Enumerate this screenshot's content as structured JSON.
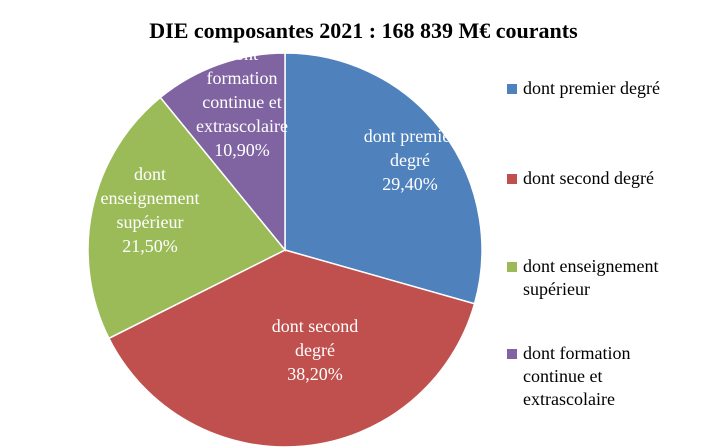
{
  "chart_data": {
    "type": "pie",
    "title": "DIE composantes 2021 : 168  839 M€ courants",
    "legend_position": "right",
    "slices": [
      {
        "name": "dont premier degré",
        "value": 29.4,
        "label_lines": [
          "dont premier",
          "degré",
          "29,40%"
        ],
        "color": "#4F81BD"
      },
      {
        "name": "dont second degré",
        "value": 38.2,
        "label_lines": [
          "dont second",
          "degré",
          "38,20%"
        ],
        "color": "#C0504D"
      },
      {
        "name": "dont enseignement supérieur",
        "value": 21.5,
        "label_lines": [
          "dont",
          "enseignement",
          "supérieur",
          "21,50%"
        ],
        "color": "#9BBB59"
      },
      {
        "name": "dont formation continue et extrascolaire",
        "value": 10.9,
        "label_lines": [
          "dont",
          "formation",
          "continue et",
          "extrascolaire",
          "10,90%"
        ],
        "color": "#8064A2"
      }
    ],
    "legend": [
      {
        "lines": [
          "dont premier degré"
        ]
      },
      {
        "lines": [
          "dont second degré"
        ]
      },
      {
        "lines": [
          "dont enseignement",
          "supérieur"
        ]
      },
      {
        "lines": [
          "dont formation",
          "continue et",
          "extrascolaire"
        ]
      }
    ]
  }
}
